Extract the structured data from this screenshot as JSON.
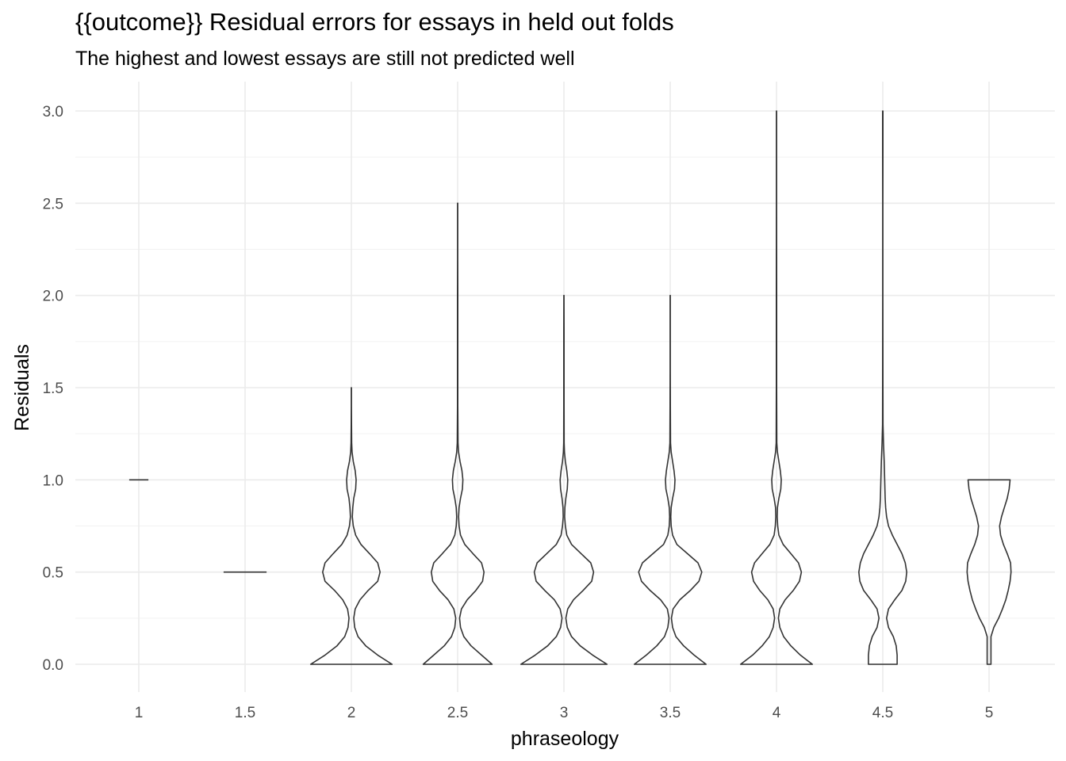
{
  "chart_data": {
    "type": "violin",
    "title": "{{outcome}} Residual errors for essays in held out folds",
    "subtitle": "The highest and lowest essays are still not predicted well",
    "xlabel": "phraseology",
    "ylabel": "Residuals",
    "categories": [
      "1",
      "1.5",
      "2",
      "2.5",
      "3",
      "3.5",
      "4",
      "4.5",
      "5"
    ],
    "yticks": [
      "0.0",
      "0.5",
      "1.0",
      "1.5",
      "2.0",
      "2.5",
      "3.0"
    ],
    "ylim": [
      -0.15,
      3.15
    ],
    "grid": true,
    "violins": [
      {
        "category": "1",
        "min": 1.0,
        "max": 1.0,
        "profile": [
          [
            1.0,
            0.2
          ]
        ]
      },
      {
        "category": "1.5",
        "min": 0.5,
        "max": 0.5,
        "profile": [
          [
            0.5,
            0.45
          ]
        ]
      },
      {
        "category": "2",
        "min": 0.0,
        "max": 1.5,
        "profile": [
          [
            0.0,
            0.85
          ],
          [
            0.05,
            0.55
          ],
          [
            0.1,
            0.3
          ],
          [
            0.15,
            0.14
          ],
          [
            0.2,
            0.07
          ],
          [
            0.25,
            0.05
          ],
          [
            0.3,
            0.08
          ],
          [
            0.35,
            0.18
          ],
          [
            0.4,
            0.35
          ],
          [
            0.45,
            0.55
          ],
          [
            0.5,
            0.6
          ],
          [
            0.55,
            0.55
          ],
          [
            0.6,
            0.38
          ],
          [
            0.65,
            0.2
          ],
          [
            0.7,
            0.09
          ],
          [
            0.75,
            0.04
          ],
          [
            0.8,
            0.02
          ],
          [
            0.85,
            0.03
          ],
          [
            0.9,
            0.05
          ],
          [
            0.95,
            0.09
          ],
          [
            1.0,
            0.1
          ],
          [
            1.05,
            0.08
          ],
          [
            1.1,
            0.04
          ],
          [
            1.15,
            0.015
          ],
          [
            1.2,
            0.006
          ],
          [
            1.3,
            0.003
          ],
          [
            1.4,
            0.002
          ],
          [
            1.5,
            0.001
          ]
        ]
      },
      {
        "category": "2.5",
        "min": 0.0,
        "max": 2.5,
        "profile": [
          [
            0.0,
            0.72
          ],
          [
            0.05,
            0.5
          ],
          [
            0.1,
            0.28
          ],
          [
            0.15,
            0.13
          ],
          [
            0.2,
            0.06
          ],
          [
            0.25,
            0.04
          ],
          [
            0.3,
            0.08
          ],
          [
            0.35,
            0.2
          ],
          [
            0.4,
            0.38
          ],
          [
            0.45,
            0.52
          ],
          [
            0.5,
            0.55
          ],
          [
            0.55,
            0.5
          ],
          [
            0.6,
            0.32
          ],
          [
            0.65,
            0.15
          ],
          [
            0.7,
            0.06
          ],
          [
            0.75,
            0.03
          ],
          [
            0.8,
            0.02
          ],
          [
            0.85,
            0.03
          ],
          [
            0.9,
            0.06
          ],
          [
            0.95,
            0.1
          ],
          [
            1.0,
            0.11
          ],
          [
            1.05,
            0.09
          ],
          [
            1.1,
            0.05
          ],
          [
            1.15,
            0.02
          ],
          [
            1.2,
            0.008
          ],
          [
            1.4,
            0.004
          ],
          [
            1.6,
            0.004
          ],
          [
            1.8,
            0.003
          ],
          [
            2.0,
            0.003
          ],
          [
            2.2,
            0.002
          ],
          [
            2.4,
            0.002
          ],
          [
            2.5,
            0.001
          ]
        ]
      },
      {
        "category": "3",
        "min": 0.0,
        "max": 2.0,
        "profile": [
          [
            0.0,
            0.9
          ],
          [
            0.05,
            0.6
          ],
          [
            0.1,
            0.34
          ],
          [
            0.15,
            0.16
          ],
          [
            0.2,
            0.07
          ],
          [
            0.25,
            0.04
          ],
          [
            0.3,
            0.08
          ],
          [
            0.35,
            0.2
          ],
          [
            0.4,
            0.4
          ],
          [
            0.45,
            0.58
          ],
          [
            0.5,
            0.62
          ],
          [
            0.55,
            0.56
          ],
          [
            0.6,
            0.36
          ],
          [
            0.65,
            0.16
          ],
          [
            0.7,
            0.06
          ],
          [
            0.75,
            0.03
          ],
          [
            0.8,
            0.015
          ],
          [
            0.85,
            0.02
          ],
          [
            0.9,
            0.04
          ],
          [
            0.95,
            0.07
          ],
          [
            1.0,
            0.08
          ],
          [
            1.05,
            0.06
          ],
          [
            1.1,
            0.03
          ],
          [
            1.15,
            0.012
          ],
          [
            1.2,
            0.005
          ],
          [
            1.4,
            0.004
          ],
          [
            1.6,
            0.003
          ],
          [
            1.8,
            0.003
          ],
          [
            2.0,
            0.001
          ]
        ]
      },
      {
        "category": "3.5",
        "min": 0.0,
        "max": 2.0,
        "profile": [
          [
            0.0,
            0.75
          ],
          [
            0.05,
            0.5
          ],
          [
            0.1,
            0.28
          ],
          [
            0.15,
            0.12
          ],
          [
            0.2,
            0.05
          ],
          [
            0.25,
            0.025
          ],
          [
            0.3,
            0.06
          ],
          [
            0.35,
            0.2
          ],
          [
            0.4,
            0.42
          ],
          [
            0.45,
            0.6
          ],
          [
            0.5,
            0.66
          ],
          [
            0.55,
            0.58
          ],
          [
            0.6,
            0.36
          ],
          [
            0.65,
            0.14
          ],
          [
            0.7,
            0.05
          ],
          [
            0.75,
            0.02
          ],
          [
            0.8,
            0.012
          ],
          [
            0.85,
            0.02
          ],
          [
            0.9,
            0.05
          ],
          [
            0.95,
            0.09
          ],
          [
            1.0,
            0.1
          ],
          [
            1.05,
            0.08
          ],
          [
            1.1,
            0.05
          ],
          [
            1.15,
            0.02
          ],
          [
            1.2,
            0.006
          ],
          [
            1.4,
            0.003
          ],
          [
            1.6,
            0.002
          ],
          [
            1.8,
            0.002
          ],
          [
            2.0,
            0.001
          ]
        ]
      },
      {
        "category": "4",
        "min": 0.0,
        "max": 3.0,
        "profile": [
          [
            0.0,
            0.75
          ],
          [
            0.05,
            0.5
          ],
          [
            0.1,
            0.3
          ],
          [
            0.15,
            0.15
          ],
          [
            0.2,
            0.07
          ],
          [
            0.25,
            0.04
          ],
          [
            0.3,
            0.07
          ],
          [
            0.35,
            0.18
          ],
          [
            0.4,
            0.35
          ],
          [
            0.45,
            0.48
          ],
          [
            0.5,
            0.52
          ],
          [
            0.55,
            0.46
          ],
          [
            0.6,
            0.3
          ],
          [
            0.65,
            0.14
          ],
          [
            0.7,
            0.05
          ],
          [
            0.75,
            0.025
          ],
          [
            0.8,
            0.015
          ],
          [
            0.85,
            0.02
          ],
          [
            0.9,
            0.05
          ],
          [
            0.95,
            0.09
          ],
          [
            1.0,
            0.1
          ],
          [
            1.05,
            0.08
          ],
          [
            1.1,
            0.05
          ],
          [
            1.15,
            0.02
          ],
          [
            1.2,
            0.006
          ],
          [
            1.5,
            0.003
          ],
          [
            2.0,
            0.003
          ],
          [
            2.5,
            0.002
          ],
          [
            3.0,
            0.001
          ]
        ]
      },
      {
        "category": "4.5",
        "min": 0.0,
        "max": 3.0,
        "profile": [
          [
            0.0,
            0.3
          ],
          [
            0.05,
            0.3
          ],
          [
            0.1,
            0.28
          ],
          [
            0.15,
            0.22
          ],
          [
            0.2,
            0.12
          ],
          [
            0.25,
            0.08
          ],
          [
            0.3,
            0.12
          ],
          [
            0.35,
            0.25
          ],
          [
            0.4,
            0.4
          ],
          [
            0.45,
            0.48
          ],
          [
            0.5,
            0.5
          ],
          [
            0.55,
            0.47
          ],
          [
            0.6,
            0.4
          ],
          [
            0.65,
            0.3
          ],
          [
            0.7,
            0.2
          ],
          [
            0.75,
            0.12
          ],
          [
            0.8,
            0.08
          ],
          [
            0.85,
            0.06
          ],
          [
            0.9,
            0.05
          ],
          [
            0.95,
            0.045
          ],
          [
            1.0,
            0.04
          ],
          [
            1.05,
            0.035
          ],
          [
            1.1,
            0.03
          ],
          [
            1.2,
            0.015
          ],
          [
            1.3,
            0.005
          ],
          [
            1.5,
            0.003
          ],
          [
            2.0,
            0.002
          ],
          [
            2.5,
            0.002
          ],
          [
            2.8,
            0.004
          ],
          [
            3.0,
            0.003
          ]
        ]
      },
      {
        "category": "5",
        "min": 0.0,
        "max": 1.0,
        "profile": [
          [
            0.0,
            0.04
          ],
          [
            0.1,
            0.04
          ],
          [
            0.15,
            0.04
          ],
          [
            0.2,
            0.1
          ],
          [
            0.25,
            0.2
          ],
          [
            0.3,
            0.28
          ],
          [
            0.35,
            0.35
          ],
          [
            0.4,
            0.4
          ],
          [
            0.45,
            0.44
          ],
          [
            0.5,
            0.46
          ],
          [
            0.55,
            0.45
          ],
          [
            0.6,
            0.38
          ],
          [
            0.65,
            0.3
          ],
          [
            0.7,
            0.24
          ],
          [
            0.75,
            0.22
          ],
          [
            0.8,
            0.26
          ],
          [
            0.85,
            0.32
          ],
          [
            0.9,
            0.38
          ],
          [
            0.95,
            0.42
          ],
          [
            1.0,
            0.44
          ]
        ]
      }
    ]
  }
}
